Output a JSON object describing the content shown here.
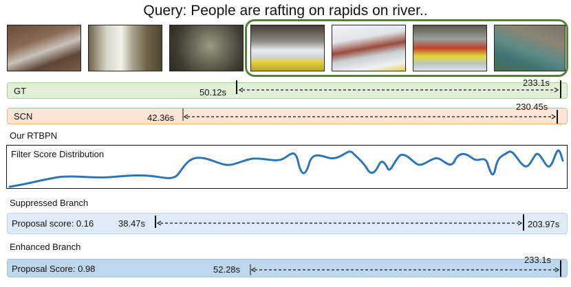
{
  "query": "Query: People are rafting on rapids on river..",
  "colors": {
    "gt_fill": "#e2f0d9",
    "gt_border": "#a9d18e",
    "scn_fill": "#fbe5d6",
    "scn_border": "#f4b183",
    "sup_fill": "#deebf7",
    "sup_border": "#bdd7ee",
    "enh_fill": "#bdd7ee",
    "enh_border": "#9dc3e6",
    "curve": "#2e75b6",
    "gt_frame": "#548235"
  },
  "thumbnails": [
    {
      "name": "waterfall-aerial-thumbnail"
    },
    {
      "name": "waterfall-closeup-thumbnail"
    },
    {
      "name": "rock-mist-thumbnail"
    },
    {
      "name": "raft-yellow-thumbnail"
    },
    {
      "name": "raft-splash-thumbnail"
    },
    {
      "name": "raft-red-crew-thumbnail"
    },
    {
      "name": "river-gorge-thumbnail"
    }
  ],
  "gt": {
    "label": "GT",
    "start": "50.12s",
    "end": "233.1s"
  },
  "scn": {
    "label": "SCN",
    "start": "42.36s",
    "end": "230.45s"
  },
  "model_label": "Our RTBPN",
  "filter": {
    "label": "Filter Score Distribution"
  },
  "suppressed": {
    "section": "Suppressed Branch",
    "label": "Proposal score: 0.16",
    "start": "38.47s",
    "end": "203.97s"
  },
  "enhanced": {
    "section": "Enhanced Branch",
    "label": "Proposal Score: 0.98",
    "start": "52.28s",
    "end": "233.1s"
  }
}
